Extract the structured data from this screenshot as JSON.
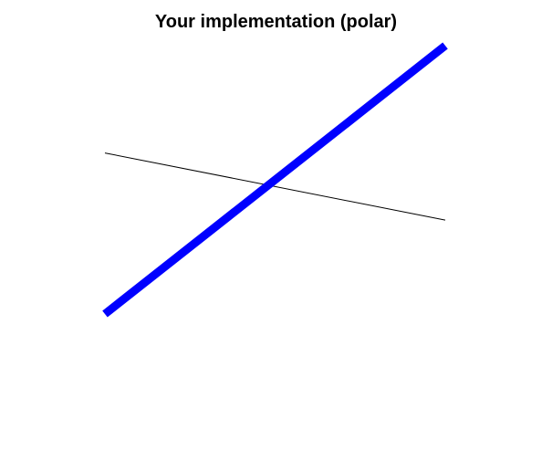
{
  "chart_data": {
    "type": "line",
    "title": "Your implementation (polar)",
    "xlabel": "",
    "ylabel": "",
    "xlim": [
      0,
      1
    ],
    "ylim": [
      0,
      1
    ],
    "grid": false,
    "axes_visible": false,
    "series": [
      {
        "color": "#000000",
        "style": "thin",
        "x": [
          0,
          1
        ],
        "y": [
          0.6,
          0.35
        ]
      },
      {
        "color": "#0000ff",
        "style": "thick",
        "x": [
          0,
          1
        ],
        "y": [
          0,
          1
        ]
      }
    ]
  }
}
